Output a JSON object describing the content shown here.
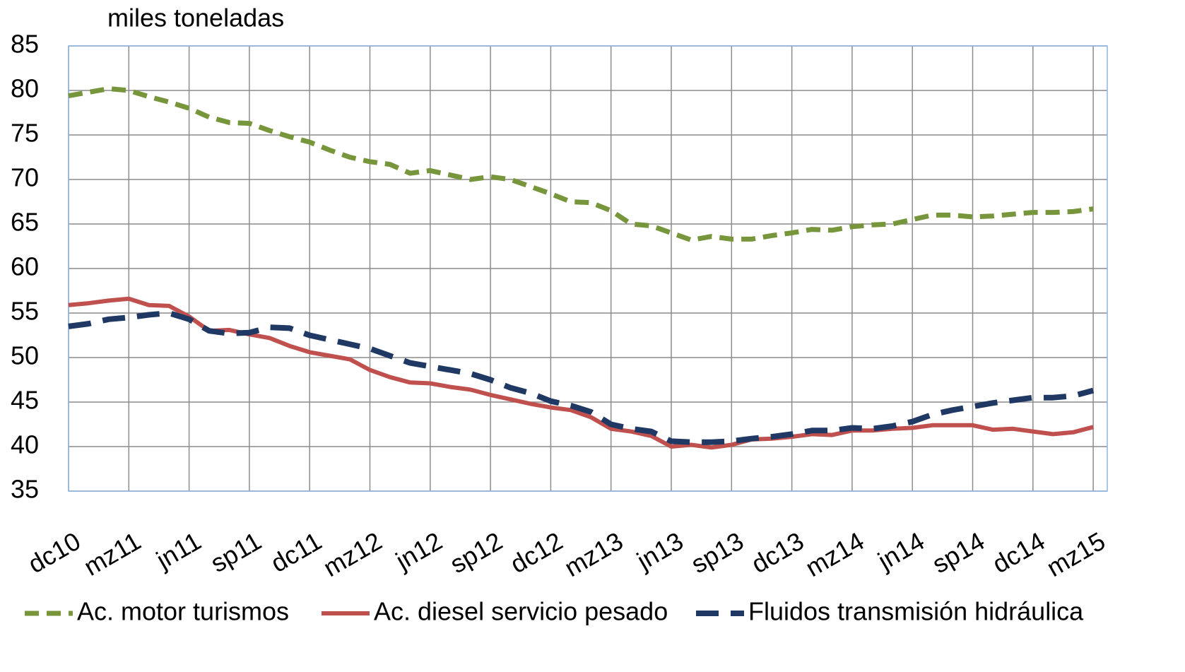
{
  "chart_data": {
    "type": "line",
    "ylabel": "miles toneladas",
    "categories": [
      "dc10",
      null,
      null,
      "mz11",
      null,
      null,
      "jn11",
      null,
      null,
      "sp11",
      null,
      null,
      "dc11",
      null,
      null,
      "mz12",
      null,
      null,
      "jn12",
      null,
      null,
      "sp12",
      null,
      null,
      "dc12",
      null,
      null,
      "mz13",
      null,
      null,
      "jn13",
      null,
      null,
      "sp13",
      null,
      null,
      "dc13",
      null,
      null,
      "mz14",
      null,
      null,
      "jn14",
      null,
      null,
      "sp14",
      null,
      null,
      "dc14",
      null,
      null,
      "mz15"
    ],
    "series": [
      {
        "name": "Ac. motor turismos",
        "color": "#77963b",
        "dash": "dashed",
        "values": [
          79.4,
          79.8,
          80.2,
          80,
          79.3,
          78.7,
          78,
          77,
          76.4,
          76.3,
          75.5,
          74.8,
          74.2,
          73.3,
          72.5,
          72,
          71.7,
          70.7,
          71,
          70.5,
          70,
          70.3,
          70,
          69.2,
          68.4,
          67.5,
          67.4,
          66.5,
          65,
          64.8,
          64,
          63.2,
          63.6,
          63.3,
          63.3,
          63.7,
          64,
          64.4,
          64.3,
          64.7,
          64.9,
          65,
          65.5,
          66,
          66,
          65.8,
          65.9,
          66.1,
          66.3,
          66.3,
          66.4,
          66.7
        ]
      },
      {
        "name": "Ac. diesel servicio pesado",
        "color": "#c0504d",
        "dash": "solid",
        "values": [
          55.9,
          56.1,
          56.4,
          56.6,
          55.9,
          55.8,
          54.6,
          53,
          53.1,
          52.6,
          52.2,
          51.3,
          50.6,
          50.2,
          49.8,
          48.6,
          47.8,
          47.2,
          47.1,
          46.7,
          46.4,
          45.8,
          45.3,
          44.8,
          44.4,
          44.1,
          43.3,
          42,
          41.7,
          41.2,
          40,
          40.2,
          39.9,
          40.2,
          40.8,
          40.9,
          41.1,
          41.4,
          41.3,
          41.8,
          41.8,
          42,
          42.1,
          42.4,
          42.4,
          42.4,
          41.9,
          42,
          41.7,
          41.4,
          41.6,
          42.2
        ]
      },
      {
        "name": "Fluidos transmisión hidráulica",
        "color": "#1f3864",
        "dash": "longdash",
        "values": [
          53.5,
          53.8,
          54.3,
          54.5,
          54.8,
          55,
          54.3,
          53,
          52.7,
          52.8,
          53.4,
          53.3,
          52.5,
          52,
          51.5,
          51,
          50.2,
          49.4,
          49,
          48.6,
          48.2,
          47.5,
          46.6,
          46,
          45.1,
          44.6,
          43.9,
          42.5,
          42,
          41.7,
          40.6,
          40.5,
          40.5,
          40.6,
          40.9,
          41.1,
          41.4,
          41.8,
          41.8,
          42.1,
          42,
          42.3,
          42.8,
          43.6,
          44.1,
          44.5,
          44.9,
          45.2,
          45.5,
          45.5,
          45.7,
          46.3
        ]
      }
    ],
    "ylim": [
      35,
      85
    ],
    "yticks": [
      35,
      40,
      45,
      50,
      55,
      60,
      65,
      70,
      75,
      80,
      85
    ],
    "grid": true,
    "legend": "bottom"
  }
}
